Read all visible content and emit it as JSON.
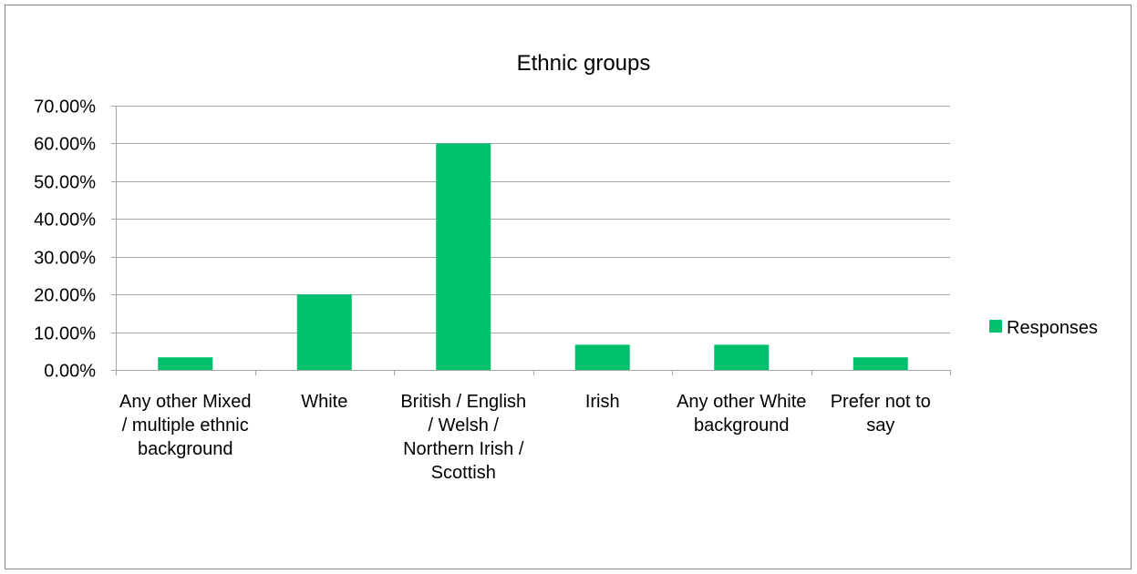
{
  "chart_data": {
    "type": "bar",
    "title": "Ethnic groups",
    "categories": [
      "Any other Mixed / multiple ethnic background",
      "White",
      "British / English / Welsh / Northern Irish / Scottish",
      "Irish",
      "Any other White background",
      "Prefer not to say"
    ],
    "series": [
      {
        "name": "Responses",
        "values": [
          3.33,
          20.0,
          60.0,
          6.67,
          6.67,
          3.33
        ],
        "color": "#00c06e"
      }
    ],
    "y_ticks": [
      "0.00%",
      "10.00%",
      "20.00%",
      "30.00%",
      "40.00%",
      "50.00%",
      "60.00%",
      "70.00%"
    ],
    "ylim": [
      0,
      70
    ],
    "y_unit": "percent",
    "grid": true,
    "legend_position": "right"
  },
  "colors": {
    "bar": "#00c06e",
    "gridline": "#a6a6a6",
    "axis": "#a6a6a6",
    "frame": "#898989"
  }
}
